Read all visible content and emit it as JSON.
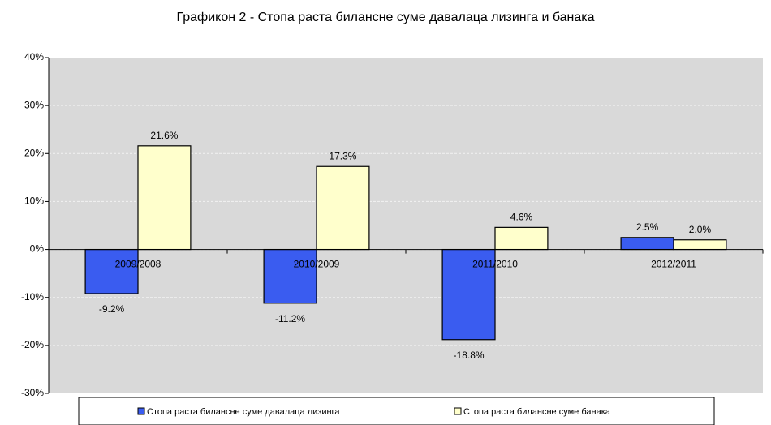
{
  "chart_data": {
    "type": "bar",
    "title": "Графикон 2 - Стопа раста билансне суме давалаца лизинга и банака",
    "categories": [
      "2009/2008",
      "2010/2009",
      "2011/2010",
      "2012/2011"
    ],
    "series": [
      {
        "name": "Стопа раста билансне суме давалаца лизинга",
        "color": "#3a5cf0",
        "values": [
          -9.2,
          -11.2,
          -18.8,
          2.5
        ],
        "value_labels": [
          "-9.2%",
          "-11.2%",
          "-18.8%",
          "2.5%"
        ]
      },
      {
        "name": "Стопа раста билансне суме банака",
        "color": "#ffffcc",
        "values": [
          21.6,
          17.3,
          4.6,
          2.0
        ],
        "value_labels": [
          "21.6%",
          "17.3%",
          "4.6%",
          "2.0%"
        ]
      }
    ],
    "ylim": [
      -30,
      40
    ],
    "yticks": [
      {
        "value": -30,
        "label": "-30%"
      },
      {
        "value": -20,
        "label": "-20%"
      },
      {
        "value": -10,
        "label": "-10%"
      },
      {
        "value": 0,
        "label": "0%"
      },
      {
        "value": 10,
        "label": "10%"
      },
      {
        "value": 20,
        "label": "20%"
      },
      {
        "value": 30,
        "label": "30%"
      },
      {
        "value": 40,
        "label": "40%"
      }
    ],
    "grid": true,
    "legend": "bottom"
  }
}
